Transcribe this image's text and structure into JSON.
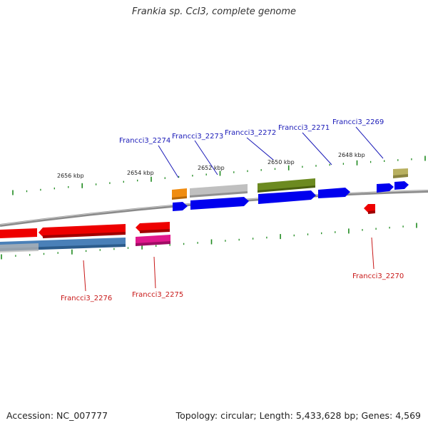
{
  "title": "Frankia sp. CcI3, complete genome",
  "footer": {
    "accession": "Accession: NC_007777",
    "summary": "Topology: circular; Length: 5,433,628 bp; Genes: 4,569"
  },
  "scale_labels": [
    "2656 kbp",
    "2654 kbp",
    "2652 kbp",
    "2650 kbp",
    "2648 kbp"
  ],
  "gene_labels_top": [
    "Francci3_2274",
    "Francci3_2273",
    "Francci3_2272",
    "Francci3_2271",
    "Francci3_2269"
  ],
  "gene_labels_bottom": [
    "Francci3_2276",
    "Francci3_2275",
    "Francci3_2270"
  ],
  "colors": {
    "label_blue": "#1a1ab8",
    "label_red": "#c81818",
    "backbone": "#8a8a8a",
    "tick": "#1f8a1f",
    "cds_blue": "#0000ee",
    "cds_red": "#ee0000",
    "cds_steelblue": "#4a80b8",
    "cds_magenta": "#e0188c",
    "cds_orange": "#f08c10",
    "cds_gray": "#c0c0c0",
    "cds_olive": "#6c8a20",
    "cds_khaki": "#b8b060"
  }
}
